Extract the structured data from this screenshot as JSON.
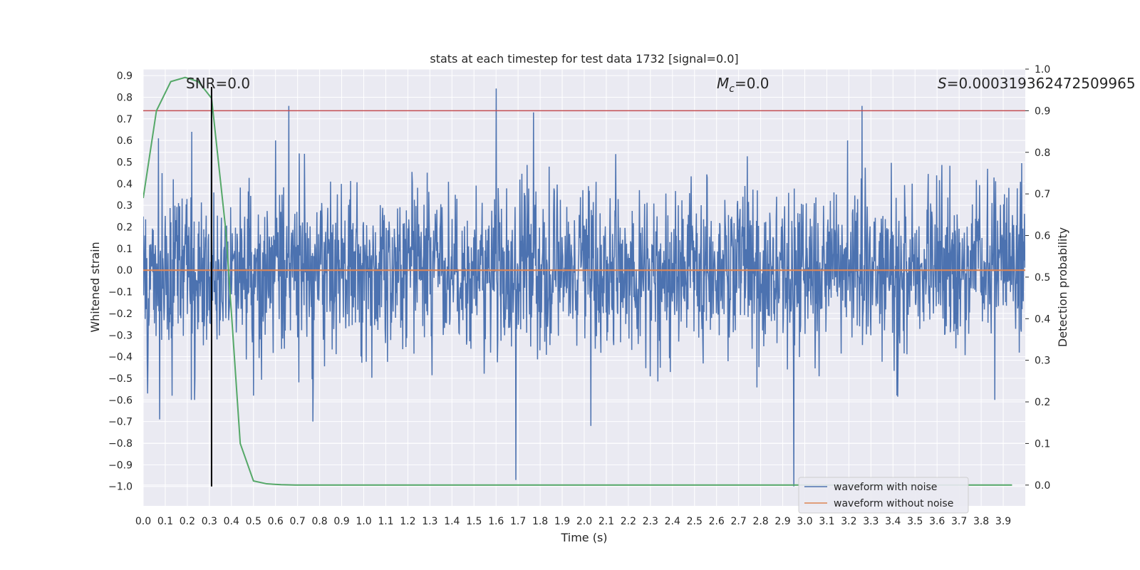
{
  "chart_data": {
    "type": "line",
    "title": "stats at each timestep for test data 1732 [signal=0.0]",
    "xlabel": "Time (s)",
    "ylabel": "Whitened strain",
    "y2label": "Detection probability",
    "xlim": [
      0.0,
      4.0
    ],
    "ylim": [
      -1.09,
      0.93
    ],
    "y2lim": [
      -0.05,
      1.0
    ],
    "grid": true,
    "legend_placement": "lower right",
    "x_ticks": [
      "0.0",
      "0.1",
      "0.2",
      "0.3",
      "0.4",
      "0.5",
      "0.6",
      "0.7",
      "0.8",
      "0.9",
      "1.0",
      "1.1",
      "1.2",
      "1.3",
      "1.4",
      "1.5",
      "1.6",
      "1.7",
      "1.8",
      "1.9",
      "2.0",
      "2.1",
      "2.2",
      "2.3",
      "2.4",
      "2.5",
      "2.6",
      "2.7",
      "2.8",
      "2.9",
      "3.0",
      "3.1",
      "3.2",
      "3.3",
      "3.4",
      "3.5",
      "3.6",
      "3.7",
      "3.8",
      "3.9"
    ],
    "y_ticks": [
      "0.9",
      "0.8",
      "0.7",
      "0.6",
      "0.5",
      "0.4",
      "0.3",
      "0.2",
      "0.1",
      "0.0",
      "−0.1",
      "−0.2",
      "−0.3",
      "−0.4",
      "−0.5",
      "−0.6",
      "−0.7",
      "−0.8",
      "−0.9",
      "−1.0"
    ],
    "y2_ticks": [
      "1.0",
      "0.9",
      "0.8",
      "0.7",
      "0.6",
      "0.5",
      "0.4",
      "0.3",
      "0.2",
      "0.1",
      "0.0"
    ],
    "annotations": {
      "snr": "SNR=0.0",
      "mc_symbol": "M",
      "mc_sub": "c",
      "mc_value": "=0.0",
      "s_symbol": "S",
      "s_value": "=0.000319362472509965"
    },
    "series": [
      {
        "name": "waveform with noise",
        "color": "#4c72b0",
        "description": "noisy whitened strain, approx. ±0.45 typical amplitude",
        "spikes": [
          {
            "x": 0.02,
            "y": -0.57
          },
          {
            "x": 0.07,
            "y": 0.61
          },
          {
            "x": 0.075,
            "y": -0.69
          },
          {
            "x": 0.22,
            "y": 0.64
          },
          {
            "x": 0.31,
            "y": 0.8
          },
          {
            "x": 0.5,
            "y": -0.58
          },
          {
            "x": 0.6,
            "y": 0.6
          },
          {
            "x": 0.66,
            "y": 0.76
          },
          {
            "x": 0.77,
            "y": -0.7
          },
          {
            "x": 1.6,
            "y": 0.84
          },
          {
            "x": 1.69,
            "y": -0.97
          },
          {
            "x": 1.77,
            "y": 0.73
          },
          {
            "x": 2.03,
            "y": -0.72
          },
          {
            "x": 2.95,
            "y": -1.0
          },
          {
            "x": 3.26,
            "y": 0.76
          }
        ]
      },
      {
        "name": "waveform without noise",
        "color": "#dd8452",
        "x": [
          0.0,
          4.0
        ],
        "y": [
          0.0,
          0.0
        ]
      },
      {
        "name": "",
        "color": "#55a868",
        "axis": "right",
        "x": [
          0.0,
          0.06,
          0.125,
          0.19,
          0.25,
          0.31,
          0.375,
          0.44,
          0.5,
          0.56,
          0.625,
          0.69,
          0.75,
          1.0,
          2.0,
          3.0,
          3.94
        ],
        "y": [
          0.69,
          0.9,
          0.97,
          0.98,
          0.97,
          0.93,
          0.61,
          0.1,
          0.01,
          0.003,
          0.001,
          0.0,
          0.0,
          0.0,
          0.0,
          0.0,
          0.0
        ]
      }
    ],
    "threshold": {
      "axis": "right",
      "value": 0.9,
      "color": "#c44e52"
    },
    "marker_line": {
      "x": 0.31,
      "color": "#000000"
    }
  }
}
